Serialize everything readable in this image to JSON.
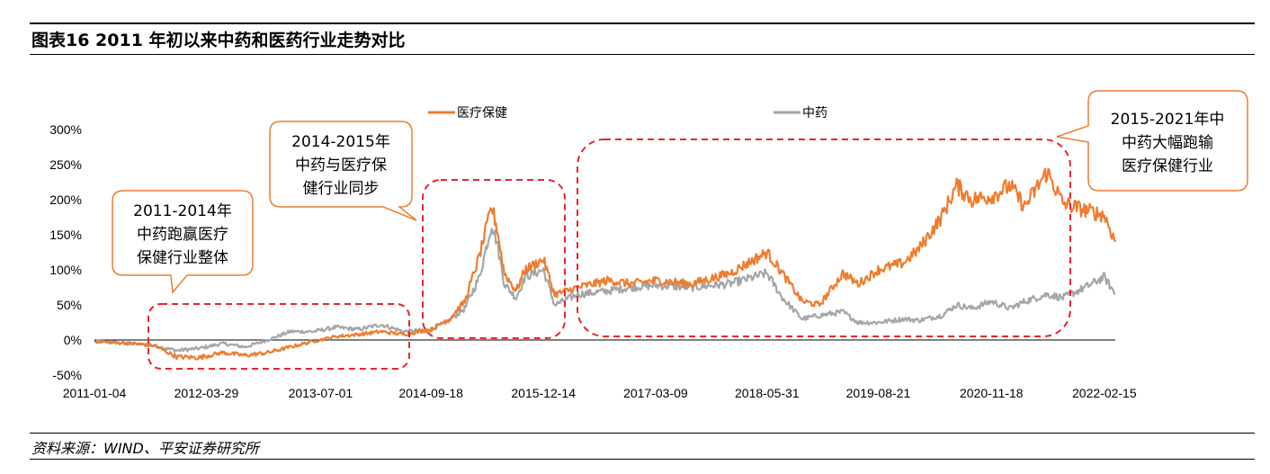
{
  "header": {
    "title": "图表16    2011 年初以来中药和医药行业走势对比"
  },
  "footer": {
    "source": "资料来源：WIND、平安证券研究所"
  },
  "colors": {
    "medical": "#ED7D31",
    "tcm": "#A6A6A6",
    "highlight": "#E8262A",
    "callout_border": "#ED7D31"
  },
  "chart_data": {
    "type": "line",
    "title": "",
    "xlabel": "",
    "ylabel": "",
    "ylim": [
      -50,
      300
    ],
    "y_ticks": [
      "-50%",
      "0%",
      "50%",
      "100%",
      "150%",
      "200%",
      "250%",
      "300%"
    ],
    "x_range": [
      "2011-01-04",
      "2022-03-31"
    ],
    "x_ticks": [
      "2011-01-04",
      "2012-03-29",
      "2013-07-01",
      "2014-09-18",
      "2015-12-14",
      "2017-03-09",
      "2018-05-31",
      "2019-08-21",
      "2020-11-18",
      "2022-02-15"
    ],
    "legend_position": "top",
    "series": [
      {
        "name": "医疗保健",
        "color": "#ED7D31",
        "points": [
          [
            "2011-01-04",
            -2
          ],
          [
            "2011-06-01",
            -5
          ],
          [
            "2011-09-01",
            -8
          ],
          [
            "2011-12-01",
            -24
          ],
          [
            "2012-03-01",
            -25
          ],
          [
            "2012-06-01",
            -18
          ],
          [
            "2012-09-01",
            -22
          ],
          [
            "2012-12-01",
            -18
          ],
          [
            "2013-03-01",
            -10
          ],
          [
            "2013-06-01",
            -2
          ],
          [
            "2013-09-01",
            5
          ],
          [
            "2013-12-01",
            8
          ],
          [
            "2014-03-01",
            12
          ],
          [
            "2014-06-01",
            8
          ],
          [
            "2014-09-18",
            15
          ],
          [
            "2014-12-01",
            30
          ],
          [
            "2015-02-01",
            55
          ],
          [
            "2015-04-01",
            120
          ],
          [
            "2015-05-20",
            190
          ],
          [
            "2015-06-10",
            160
          ],
          [
            "2015-07-10",
            95
          ],
          [
            "2015-08-26",
            70
          ],
          [
            "2015-10-01",
            100
          ],
          [
            "2015-12-14",
            115
          ],
          [
            "2016-01-28",
            65
          ],
          [
            "2016-05-01",
            75
          ],
          [
            "2016-09-01",
            85
          ],
          [
            "2016-12-01",
            80
          ],
          [
            "2017-03-09",
            85
          ],
          [
            "2017-08-01",
            80
          ],
          [
            "2018-01-01",
            95
          ],
          [
            "2018-05-31",
            125
          ],
          [
            "2018-08-01",
            95
          ],
          [
            "2018-10-19",
            55
          ],
          [
            "2018-12-28",
            50
          ],
          [
            "2019-04-01",
            95
          ],
          [
            "2019-06-01",
            80
          ],
          [
            "2019-08-21",
            100
          ],
          [
            "2019-12-01",
            110
          ],
          [
            "2020-02-01",
            130
          ],
          [
            "2020-05-01",
            175
          ],
          [
            "2020-07-01",
            220
          ],
          [
            "2020-09-01",
            200
          ],
          [
            "2020-11-18",
            205
          ],
          [
            "2021-02-01",
            220
          ],
          [
            "2021-04-01",
            190
          ],
          [
            "2021-06-30",
            240
          ],
          [
            "2021-09-01",
            195
          ],
          [
            "2021-12-01",
            185
          ],
          [
            "2022-02-15",
            178
          ],
          [
            "2022-03-31",
            140
          ]
        ]
      },
      {
        "name": "中药",
        "color": "#A6A6A6",
        "points": [
          [
            "2011-01-04",
            -2
          ],
          [
            "2011-06-01",
            -5
          ],
          [
            "2011-09-01",
            -8
          ],
          [
            "2011-12-01",
            -15
          ],
          [
            "2012-03-01",
            -12
          ],
          [
            "2012-06-01",
            -5
          ],
          [
            "2012-09-01",
            -10
          ],
          [
            "2012-12-01",
            0
          ],
          [
            "2013-03-01",
            12
          ],
          [
            "2013-06-01",
            12
          ],
          [
            "2013-09-01",
            18
          ],
          [
            "2013-12-01",
            15
          ],
          [
            "2014-03-01",
            22
          ],
          [
            "2014-06-01",
            12
          ],
          [
            "2014-09-18",
            15
          ],
          [
            "2014-12-01",
            28
          ],
          [
            "2015-02-01",
            45
          ],
          [
            "2015-04-01",
            90
          ],
          [
            "2015-05-20",
            165
          ],
          [
            "2015-06-10",
            140
          ],
          [
            "2015-07-10",
            80
          ],
          [
            "2015-08-26",
            60
          ],
          [
            "2015-10-01",
            90
          ],
          [
            "2015-12-14",
            100
          ],
          [
            "2016-01-28",
            50
          ],
          [
            "2016-05-01",
            65
          ],
          [
            "2016-09-01",
            70
          ],
          [
            "2016-12-01",
            75
          ],
          [
            "2017-03-09",
            78
          ],
          [
            "2017-08-01",
            75
          ],
          [
            "2018-01-01",
            80
          ],
          [
            "2018-05-31",
            95
          ],
          [
            "2018-08-01",
            60
          ],
          [
            "2018-10-19",
            30
          ],
          [
            "2018-12-28",
            35
          ],
          [
            "2019-04-01",
            40
          ],
          [
            "2019-06-01",
            25
          ],
          [
            "2019-08-21",
            25
          ],
          [
            "2019-12-01",
            30
          ],
          [
            "2020-02-01",
            28
          ],
          [
            "2020-05-01",
            35
          ],
          [
            "2020-07-01",
            50
          ],
          [
            "2020-09-01",
            45
          ],
          [
            "2020-11-18",
            55
          ],
          [
            "2021-02-01",
            45
          ],
          [
            "2021-04-01",
            55
          ],
          [
            "2021-06-30",
            65
          ],
          [
            "2021-09-01",
            60
          ],
          [
            "2021-12-01",
            75
          ],
          [
            "2022-02-15",
            90
          ],
          [
            "2022-03-31",
            65
          ]
        ]
      }
    ],
    "annotations": [
      {
        "lines": [
          "2011-2014年",
          "中药跑赢医疗",
          "保健行业整体"
        ]
      },
      {
        "lines": [
          "2014-2015年",
          "中药与医疗保",
          "健行业同步"
        ]
      },
      {
        "lines": [
          "2015-2021年中",
          "中药大幅跑输",
          "医疗保健行业"
        ]
      }
    ]
  }
}
